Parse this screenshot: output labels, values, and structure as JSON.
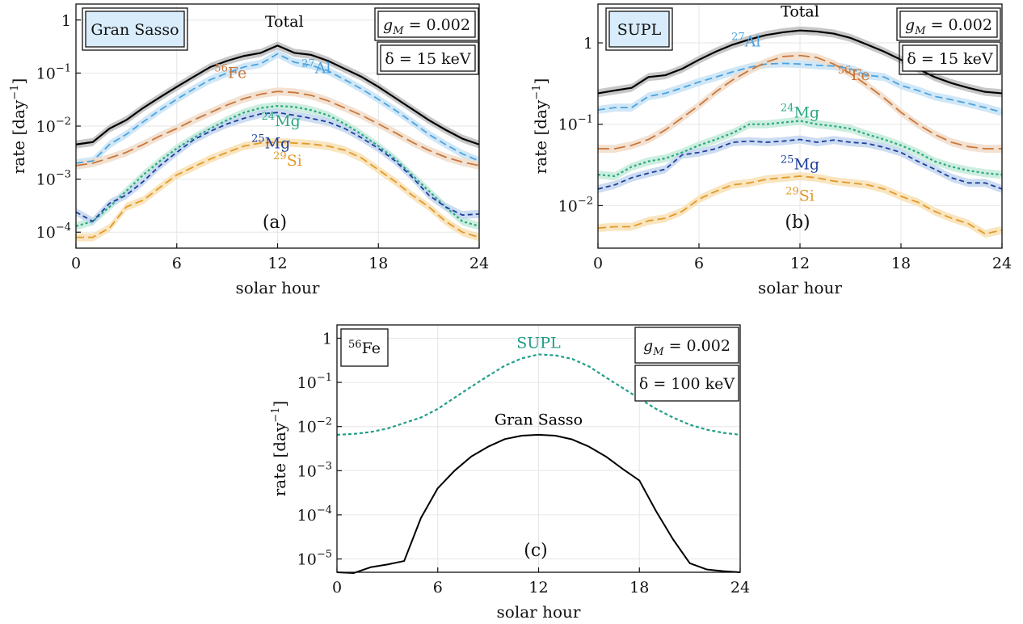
{
  "chart_data": [
    {
      "type": "line",
      "panel_label": "(a)",
      "site_label": "Gran Sasso",
      "xlabel": "solar hour",
      "ylabel": "rate [day",
      "ylabel_exp": "−1",
      "ylabel_close": "]",
      "yscale": "log",
      "xlim": [
        0,
        24
      ],
      "ylim": [
        5e-05,
        2
      ],
      "xticks": [
        "0",
        "6",
        "12",
        "18",
        "24"
      ],
      "yticks": [
        {
          "v": 1,
          "m": "1",
          "e": ""
        },
        {
          "v": 0.1,
          "m": "10",
          "e": "−1"
        },
        {
          "v": 0.01,
          "m": "10",
          "e": "−2"
        },
        {
          "v": 0.001,
          "m": "10",
          "e": "−3"
        },
        {
          "v": 0.0001,
          "m": "10",
          "e": "−4"
        }
      ],
      "params": {
        "gM": "g",
        "gM_sub": "M",
        "gM_val": " = 0.002",
        "delta": "δ = 15 keV"
      },
      "x": [
        0,
        1,
        2,
        3,
        4,
        5,
        6,
        7,
        8,
        9,
        10,
        11,
        12,
        13,
        14,
        15,
        16,
        17,
        18,
        19,
        20,
        21,
        22,
        23,
        24
      ],
      "series": [
        {
          "name": "Total",
          "label_main": "Total",
          "label_iso": "",
          "color": "#000000",
          "band": "#bdbdbd",
          "dash": "",
          "width": 2.2,
          "values": [
            0.0045,
            0.005,
            0.009,
            0.013,
            0.022,
            0.035,
            0.055,
            0.085,
            0.13,
            0.17,
            0.21,
            0.24,
            0.33,
            0.24,
            0.22,
            0.17,
            0.12,
            0.085,
            0.055,
            0.034,
            0.021,
            0.013,
            0.0085,
            0.0058,
            0.0045
          ]
        },
        {
          "name": "27Al",
          "label_main": "Al",
          "label_iso": "27",
          "color": "#4da3de",
          "band": "#c8e3f6",
          "dash": "9,5",
          "width": 1.8,
          "values": [
            0.002,
            0.0022,
            0.0045,
            0.007,
            0.012,
            0.02,
            0.032,
            0.05,
            0.075,
            0.1,
            0.13,
            0.15,
            0.23,
            0.16,
            0.14,
            0.11,
            0.075,
            0.05,
            0.032,
            0.02,
            0.012,
            0.007,
            0.0045,
            0.003,
            0.0022
          ]
        },
        {
          "name": "56Fe",
          "label_main": "Fe",
          "label_iso": "56",
          "color": "#c9773a",
          "band": "#f1dcc9",
          "dash": "14,6",
          "width": 1.8,
          "values": [
            0.0018,
            0.002,
            0.0025,
            0.0032,
            0.0045,
            0.0065,
            0.009,
            0.013,
            0.018,
            0.025,
            0.033,
            0.04,
            0.045,
            0.043,
            0.038,
            0.03,
            0.022,
            0.016,
            0.011,
            0.0075,
            0.005,
            0.0035,
            0.0026,
            0.0021,
            0.0018
          ]
        },
        {
          "name": "24Mg",
          "label_main": "Mg",
          "label_iso": "24",
          "color": "#2aa882",
          "band": "#c4ebd9",
          "dash": "3,3",
          "width": 2.2,
          "values": [
            0.00013,
            0.00016,
            0.0003,
            0.0006,
            0.0012,
            0.0022,
            0.0038,
            0.006,
            0.009,
            0.013,
            0.018,
            0.022,
            0.024,
            0.023,
            0.02,
            0.016,
            0.011,
            0.007,
            0.0042,
            0.0024,
            0.0012,
            0.0006,
            0.0003,
            0.00016,
            0.00013
          ]
        },
        {
          "name": "25Mg",
          "label_main": "Mg",
          "label_iso": "25",
          "color": "#1f3f9e",
          "band": "#c3d6ef",
          "dash": "6,4",
          "width": 1.8,
          "values": [
            0.00024,
            0.00016,
            0.00035,
            0.0005,
            0.0009,
            0.0018,
            0.0032,
            0.0055,
            0.008,
            0.011,
            0.014,
            0.017,
            0.018,
            0.016,
            0.014,
            0.012,
            0.009,
            0.006,
            0.0038,
            0.0022,
            0.0011,
            0.0005,
            0.0003,
            0.00021,
            0.00022
          ]
        },
        {
          "name": "29Si",
          "label_main": "Si",
          "label_iso": "29",
          "color": "#e39a2a",
          "band": "#f8e0b4",
          "dash": "10,5",
          "width": 1.8,
          "values": [
            8e-05,
            8e-05,
            0.00012,
            0.0003,
            0.0004,
            0.0007,
            0.0012,
            0.0017,
            0.0024,
            0.0032,
            0.0042,
            0.0048,
            0.005,
            0.0048,
            0.0046,
            0.0042,
            0.0035,
            0.0025,
            0.0015,
            0.0009,
            0.0005,
            0.0003,
            0.00016,
            0.0001,
            8e-05
          ]
        }
      ],
      "labels_pos": [
        {
          "series": 0,
          "x": 12.4,
          "y": 0.75
        },
        {
          "series": 1,
          "x": 14.3,
          "y": 0.1
        },
        {
          "series": 2,
          "x": 9.2,
          "y": 0.08
        },
        {
          "series": 3,
          "x": 12.2,
          "y": 0.01
        },
        {
          "series": 4,
          "x": 11.6,
          "y": 0.0038
        },
        {
          "series": 5,
          "x": 12.6,
          "y": 0.0018
        }
      ]
    },
    {
      "type": "line",
      "panel_label": "(b)",
      "site_label": "SUPL",
      "xlabel": "solar hour",
      "ylabel": "rate [day",
      "ylabel_exp": "−1",
      "ylabel_close": "]",
      "yscale": "log",
      "xlim": [
        0,
        24
      ],
      "ylim": [
        0.003,
        3
      ],
      "xticks": [
        "0",
        "6",
        "12",
        "18",
        "24"
      ],
      "yticks": [
        {
          "v": 1,
          "m": "1",
          "e": ""
        },
        {
          "v": 0.1,
          "m": "10",
          "e": "−1"
        },
        {
          "v": 0.01,
          "m": "10",
          "e": "−2"
        }
      ],
      "params": {
        "gM": "g",
        "gM_sub": "M",
        "gM_val": " = 0.002",
        "delta": "δ = 15 keV"
      },
      "x": [
        0,
        1,
        2,
        3,
        4,
        5,
        6,
        7,
        8,
        9,
        10,
        11,
        12,
        13,
        14,
        15,
        16,
        17,
        18,
        19,
        20,
        21,
        22,
        23,
        24
      ],
      "series": [
        {
          "name": "Total",
          "label_main": "Total",
          "label_iso": "",
          "color": "#000000",
          "band": "#bdbdbd",
          "dash": "",
          "width": 2.2,
          "values": [
            0.24,
            0.26,
            0.28,
            0.38,
            0.4,
            0.48,
            0.62,
            0.78,
            0.95,
            1.1,
            1.25,
            1.35,
            1.42,
            1.38,
            1.3,
            1.15,
            0.95,
            0.78,
            0.62,
            0.48,
            0.38,
            0.32,
            0.28,
            0.25,
            0.24
          ]
        },
        {
          "name": "27Al",
          "label_main": "Al",
          "label_iso": "27",
          "color": "#4da3de",
          "band": "#c8e3f6",
          "dash": "9,5",
          "width": 1.8,
          "values": [
            0.15,
            0.16,
            0.16,
            0.22,
            0.24,
            0.28,
            0.33,
            0.38,
            0.44,
            0.5,
            0.55,
            0.56,
            0.55,
            0.53,
            0.52,
            0.48,
            0.4,
            0.38,
            0.3,
            0.26,
            0.22,
            0.2,
            0.18,
            0.16,
            0.14
          ]
        },
        {
          "name": "56Fe",
          "label_main": "Fe",
          "label_iso": "56",
          "color": "#c9773a",
          "band": "#f1dcc9",
          "dash": "14,6",
          "width": 1.8,
          "values": [
            0.05,
            0.05,
            0.055,
            0.065,
            0.085,
            0.12,
            0.17,
            0.25,
            0.35,
            0.46,
            0.58,
            0.68,
            0.7,
            0.66,
            0.55,
            0.42,
            0.3,
            0.21,
            0.14,
            0.1,
            0.075,
            0.06,
            0.053,
            0.05,
            0.05
          ]
        },
        {
          "name": "24Mg",
          "label_main": "Mg",
          "label_iso": "24",
          "color": "#2aa882",
          "band": "#c4ebd9",
          "dash": "3,3",
          "width": 2.2,
          "values": [
            0.024,
            0.023,
            0.03,
            0.035,
            0.038,
            0.045,
            0.055,
            0.065,
            0.078,
            0.1,
            0.1,
            0.105,
            0.11,
            0.1,
            0.095,
            0.088,
            0.075,
            0.065,
            0.055,
            0.045,
            0.035,
            0.03,
            0.027,
            0.025,
            0.024
          ]
        },
        {
          "name": "25Mg",
          "label_main": "Mg",
          "label_iso": "25",
          "color": "#1f3f9e",
          "band": "#c3d6ef",
          "dash": "6,4",
          "width": 1.8,
          "values": [
            0.016,
            0.018,
            0.022,
            0.025,
            0.028,
            0.042,
            0.045,
            0.05,
            0.06,
            0.062,
            0.06,
            0.062,
            0.065,
            0.06,
            0.064,
            0.06,
            0.058,
            0.052,
            0.045,
            0.035,
            0.028,
            0.022,
            0.019,
            0.019,
            0.016
          ]
        },
        {
          "name": "29Si",
          "label_main": "Si",
          "label_iso": "29",
          "color": "#e39a2a",
          "band": "#f8e0b4",
          "dash": "10,5",
          "width": 1.8,
          "values": [
            0.0053,
            0.0055,
            0.0055,
            0.0065,
            0.007,
            0.0085,
            0.012,
            0.015,
            0.018,
            0.019,
            0.021,
            0.022,
            0.023,
            0.022,
            0.02,
            0.019,
            0.018,
            0.016,
            0.013,
            0.011,
            0.0085,
            0.007,
            0.006,
            0.0045,
            0.005
          ]
        }
      ],
      "labels_pos": [
        {
          "series": 0,
          "x": 12.0,
          "y": 2.1
        },
        {
          "series": 1,
          "x": 8.8,
          "y": 0.9
        },
        {
          "series": 2,
          "x": 15.2,
          "y": 0.35
        },
        {
          "series": 3,
          "x": 12.0,
          "y": 0.12
        },
        {
          "series": 4,
          "x": 12.0,
          "y": 0.028
        },
        {
          "series": 5,
          "x": 12.0,
          "y": 0.0115
        }
      ]
    },
    {
      "type": "line",
      "panel_label": "(c)",
      "site_label": "Fe",
      "site_label_iso": "56",
      "xlabel": "solar hour",
      "ylabel": "rate [day",
      "ylabel_exp": "−1",
      "ylabel_close": "]",
      "yscale": "log",
      "xlim": [
        0,
        24
      ],
      "ylim": [
        5e-06,
        2
      ],
      "xticks": [
        "0",
        "6",
        "12",
        "18",
        "24"
      ],
      "yticks": [
        {
          "v": 1,
          "m": "1",
          "e": ""
        },
        {
          "v": 0.1,
          "m": "10",
          "e": "−1"
        },
        {
          "v": 0.01,
          "m": "10",
          "e": "−2"
        },
        {
          "v": 0.001,
          "m": "10",
          "e": "−3"
        },
        {
          "v": 0.0001,
          "m": "10",
          "e": "−4"
        },
        {
          "v": 1e-05,
          "m": "10",
          "e": "−5"
        }
      ],
      "params": {
        "gM": "g",
        "gM_sub": "M",
        "gM_val": " = 0.002",
        "delta": "δ = 100 keV"
      },
      "x": [
        0,
        1,
        2,
        3,
        4,
        5,
        6,
        7,
        8,
        9,
        10,
        11,
        12,
        13,
        14,
        15,
        16,
        17,
        18,
        19,
        20,
        21,
        22,
        23,
        24
      ],
      "series": [
        {
          "name": "SUPL",
          "label_main": "SUPL",
          "label_iso": "",
          "color": "#1f9e89",
          "band": "",
          "dash": "4,3",
          "width": 2.2,
          "values": [
            0.0065,
            0.0068,
            0.0075,
            0.009,
            0.012,
            0.016,
            0.025,
            0.045,
            0.08,
            0.14,
            0.24,
            0.35,
            0.43,
            0.41,
            0.34,
            0.23,
            0.13,
            0.075,
            0.043,
            0.025,
            0.016,
            0.011,
            0.0085,
            0.0072,
            0.0065
          ]
        },
        {
          "name": "Gran Sasso",
          "label_main": "Gran Sasso",
          "label_iso": "",
          "color": "#000000",
          "band": "",
          "dash": "",
          "width": 2.0,
          "values": [
            5e-06,
            4.8e-06,
            6.5e-06,
            7.5e-06,
            9e-06,
            8.5e-05,
            0.0004,
            0.001,
            0.0021,
            0.0035,
            0.0052,
            0.0062,
            0.0065,
            0.0062,
            0.0051,
            0.0035,
            0.0021,
            0.0011,
            0.0006,
            0.00012,
            2.8e-05,
            8e-06,
            5.8e-06,
            5.3e-06,
            5e-06
          ]
        }
      ],
      "labels_pos": [
        {
          "series": 0,
          "x": 12.0,
          "y": 0.6
        },
        {
          "series": 1,
          "x": 12.0,
          "y": 0.011
        }
      ]
    }
  ]
}
